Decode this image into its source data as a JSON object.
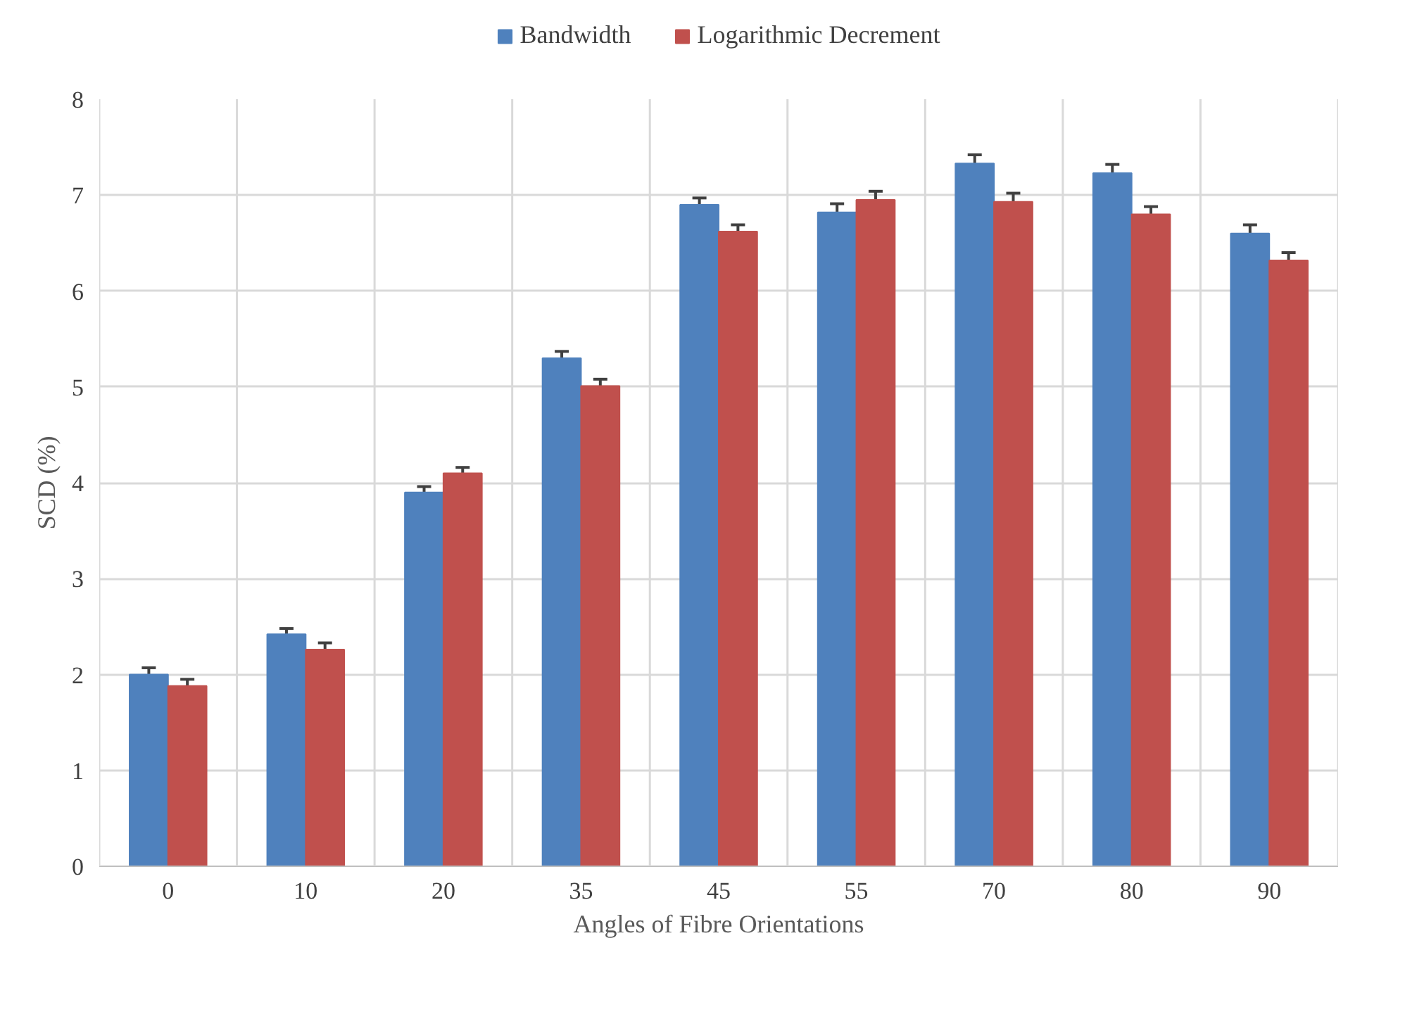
{
  "chart_data": {
    "type": "bar",
    "xlabel": "Angles of Fibre Orientations",
    "ylabel": "SCD (%)",
    "categories": [
      "0",
      "10",
      "20",
      "35",
      "45",
      "55",
      "70",
      "80",
      "90"
    ],
    "series": [
      {
        "name": "Bandwidth",
        "color": "#4f81bd",
        "values": [
          2.0,
          2.42,
          3.9,
          5.3,
          6.9,
          6.82,
          7.33,
          7.23,
          6.6
        ],
        "errors": [
          0.07,
          0.06,
          0.06,
          0.07,
          0.07,
          0.09,
          0.09,
          0.09,
          0.09
        ]
      },
      {
        "name": "Logarithmic Decrement",
        "color": "#c0504d",
        "values": [
          1.88,
          2.26,
          4.1,
          5.01,
          6.62,
          6.95,
          6.93,
          6.8,
          6.32
        ],
        "errors": [
          0.07,
          0.07,
          0.06,
          0.07,
          0.07,
          0.09,
          0.09,
          0.08,
          0.08
        ]
      }
    ],
    "ylim": [
      0,
      8
    ],
    "yticks": [
      0,
      1,
      2,
      3,
      4,
      5,
      6,
      7,
      8
    ],
    "grid": true,
    "legend": "top"
  }
}
